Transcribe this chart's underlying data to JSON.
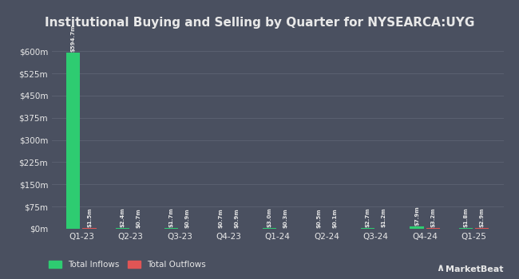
{
  "title_display": "Institutional Buying and Selling by Quarter for NYSEARCA:UYG",
  "quarters": [
    "Q1-23",
    "Q2-23",
    "Q3-23",
    "Q4-23",
    "Q1-24",
    "Q2-24",
    "Q3-24",
    "Q4-24",
    "Q1-25"
  ],
  "inflows": [
    594.7,
    2.4,
    1.7,
    0.7,
    3.0,
    0.5,
    2.7,
    7.9,
    1.8
  ],
  "outflows": [
    1.5,
    0.7,
    0.9,
    0.9,
    0.3,
    0.1,
    1.2,
    3.2,
    2.9
  ],
  "inflow_labels": [
    "$594.7m",
    "$2.4m",
    "$1.7m",
    "$0.7m",
    "$3.0m",
    "$0.5m",
    "$2.7m",
    "$7.9m",
    "$1.8m"
  ],
  "outflow_labels": [
    "$1.5m",
    "$0.7m",
    "$0.9m",
    "$0.9m",
    "$0.3m",
    "$0.1m",
    "$1.2m",
    "$3.2m",
    "$2.9m"
  ],
  "inflow_color": "#2ecc71",
  "outflow_color": "#e05555",
  "background_color": "#4a5060",
  "plot_bg_color": "#4a5060",
  "grid_color": "#5a6070",
  "text_color": "#e8e8e8",
  "bar_width": 0.28,
  "bar_gap": 0.05,
  "yticks": [
    0,
    75,
    150,
    225,
    300,
    375,
    450,
    525,
    600
  ],
  "ytick_labels": [
    "$0m",
    "$75m",
    "$150m",
    "$225m",
    "$300m",
    "$375m",
    "$450m",
    "$525m",
    "$600m"
  ],
  "ylim": [
    0,
    660
  ],
  "legend_inflow": "Total Inflows",
  "legend_outflow": "Total Outflows"
}
